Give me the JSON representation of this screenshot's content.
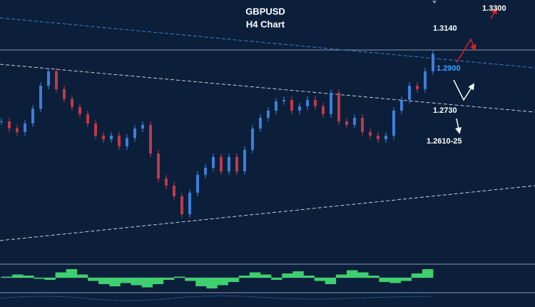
{
  "chart_data": {
    "type": "candlestick",
    "title": "GBPUSD",
    "subtitle": "H4 Chart",
    "values": [
      1.2708,
      1.268,
      1.2665,
      1.27,
      1.276,
      1.2854,
      1.2913,
      1.284,
      1.28,
      1.2767,
      1.2738,
      1.27,
      1.265,
      1.2635,
      1.265,
      1.2606,
      1.264,
      1.2679,
      1.2694,
      1.2577,
      1.2475,
      1.2446,
      1.2402,
      1.2329,
      1.2417,
      1.249,
      1.2519,
      1.2563,
      1.2504,
      1.2563,
      1.2504,
      1.2592,
      1.2679,
      1.2723,
      1.2752,
      1.279,
      1.2796,
      1.2752,
      1.277,
      1.2796,
      1.277,
      1.2738,
      1.2825,
      1.2708,
      1.2694,
      1.2723,
      1.2665,
      1.265,
      1.2635,
      1.265,
      1.2752,
      1.2796,
      1.2854,
      1.284,
      1.2913,
      1.2985
    ],
    "ylim": [
      1.23,
      1.3
    ],
    "up_color": "#3d7fd9",
    "down_color": "#c0394a",
    "annotations": [
      {
        "text": "1.3300",
        "color": "#ffffff"
      },
      {
        "text": "1.3140",
        "color": "#ffffff"
      },
      {
        "text": "1.2900",
        "color": "#3fa0ff"
      },
      {
        "text": "1.2730",
        "color": "#ffffff"
      },
      {
        "text": "1.2610-25",
        "color": "#ffffff"
      }
    ],
    "oscillator": {
      "values": [
        0.1,
        0.3,
        0.2,
        -0.1,
        -0.2,
        0.5,
        0.8,
        0.3,
        -0.3,
        -0.6,
        -0.8,
        -0.5,
        -0.7,
        -0.9,
        -0.6,
        -0.2,
        0.1,
        -0.3,
        -0.8,
        -1,
        -0.7,
        -0.4,
        0.2,
        0.5,
        0.3,
        -0.2,
        0.4,
        0.6,
        0.2,
        -0.3,
        -0.6,
        0.3,
        0.7,
        0.5,
        0.2,
        -0.4,
        -0.5,
        -0.3,
        0.4,
        0.8
      ],
      "ylim": [
        -1,
        1
      ],
      "color": "#3fcf6e"
    }
  }
}
